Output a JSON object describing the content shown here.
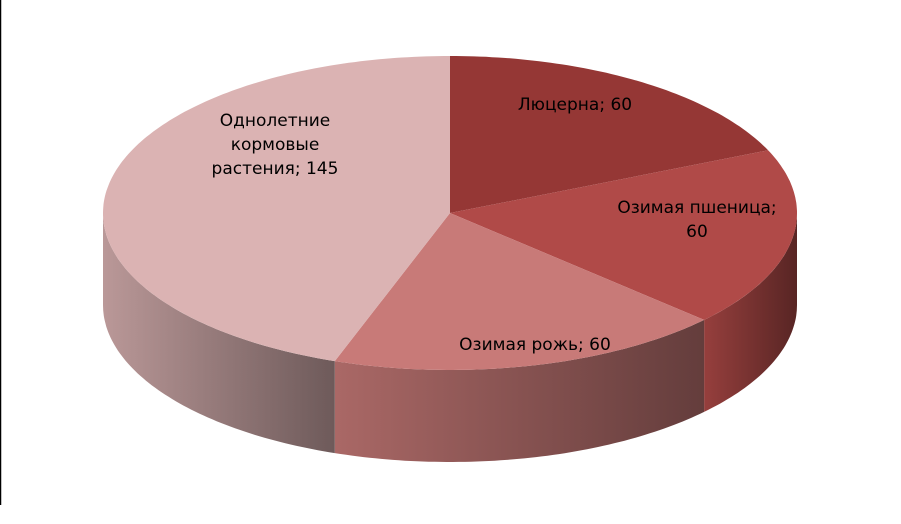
{
  "chart_data": {
    "type": "pie3d",
    "values": [
      60,
      60,
      60,
      145
    ],
    "value_labels": [
      "Люцерна; 60",
      "Озимая пшеница; 60",
      "Озимая рожь; 60",
      "Однолетние кормовые растения; 145"
    ],
    "colors": [
      "#953735",
      "#b04a48",
      "#c87a78",
      "#dbb3b3"
    ]
  }
}
